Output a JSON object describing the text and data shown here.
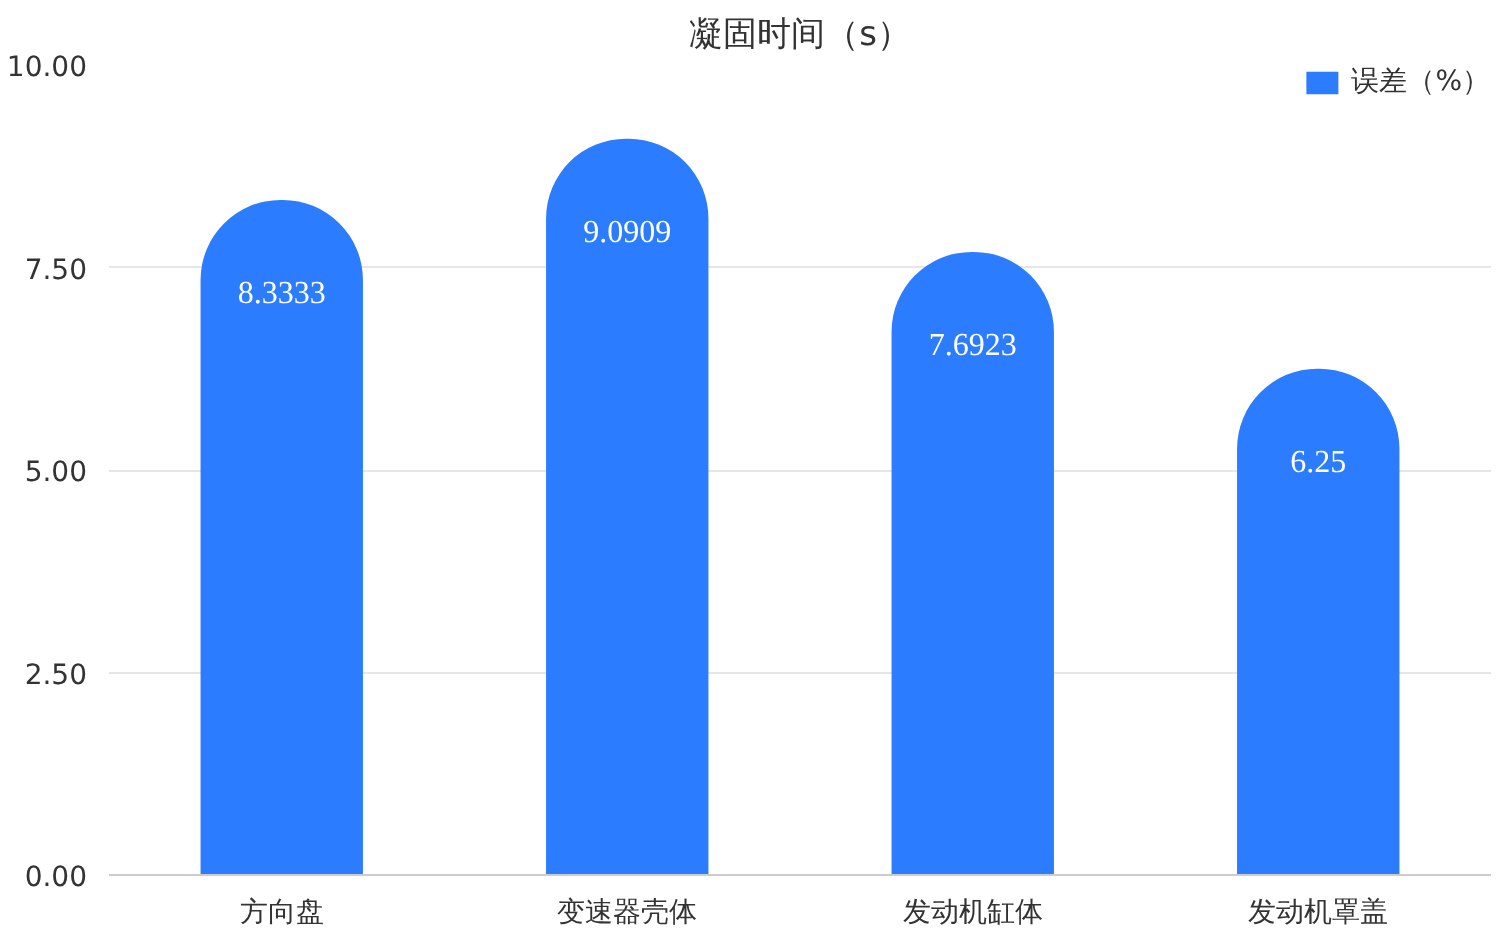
{
  "chart_data": {
    "type": "bar",
    "title": "凝固时间（s）",
    "categories": [
      "方向盘",
      "变速器壳体",
      "发动机缸体",
      "发动机罩盖"
    ],
    "series": [
      {
        "name": "误差（%）",
        "color": "#2b7cff",
        "values": [
          8.3333,
          9.0909,
          7.6923,
          6.25
        ]
      }
    ],
    "ylim": [
      0,
      10
    ],
    "yticks": [
      {
        "value": 0,
        "label": "0.00"
      },
      {
        "value": 2.5,
        "label": "2.50"
      },
      {
        "value": 5,
        "label": "5.00"
      },
      {
        "value": 7.5,
        "label": "7.50"
      },
      {
        "value": 10,
        "label": "10.00"
      }
    ],
    "grid": "y",
    "legend": "top right",
    "data_labels": true
  }
}
